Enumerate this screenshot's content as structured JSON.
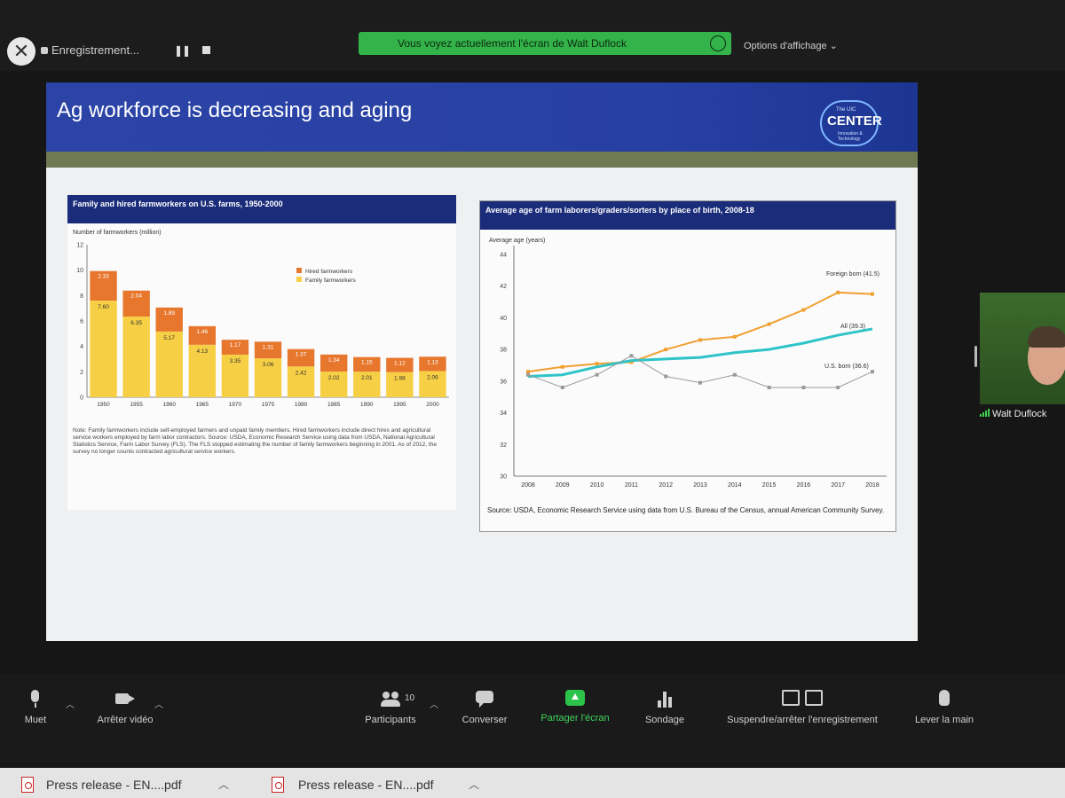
{
  "top_bar": {
    "recording_label": "Enregistrement...",
    "sharing_banner": "Vous voyez actuellement l'écran de Walt Duflock",
    "view_options": "Options d'affichage ⌄"
  },
  "slide": {
    "title": "Ag workforce is decreasing and aging",
    "logo_top": "The UIC",
    "logo_main": "CENTER",
    "logo_sub": "Innovation & Technology"
  },
  "chart_data": [
    {
      "type": "bar",
      "title": "Family and hired farmworkers on U.S. farms, 1950-2000",
      "ylabel": "Number of farmworkers (million)",
      "categories": [
        "1950",
        "1955",
        "1960",
        "1965",
        "1970",
        "1975",
        "1980",
        "1985",
        "1990",
        "1995",
        "2000"
      ],
      "stacked": true,
      "ylim": [
        0,
        12
      ],
      "yticks": [
        "0",
        "2",
        "4",
        "6",
        "8",
        "10",
        "12"
      ],
      "series": [
        {
          "name": "Hired farmworkers",
          "color": "#e8772e",
          "values": [
            2.33,
            2.04,
            1.89,
            1.46,
            1.17,
            1.31,
            1.37,
            1.34,
            1.15,
            1.12,
            1.13
          ],
          "labels": [
            "2.33",
            "2.04",
            "1.89",
            "1.46",
            "1.17",
            "1.31",
            "1.37",
            "1.34",
            "1.15",
            "1.12",
            "1.13"
          ]
        },
        {
          "name": "Family farmworkers",
          "color": "#f6cf45",
          "values": [
            7.6,
            6.35,
            5.17,
            4.13,
            3.35,
            3.06,
            2.42,
            2.02,
            2.01,
            1.98,
            2.06
          ],
          "labels": [
            "7.60",
            "6.35",
            "5.17",
            "4.13",
            "3.35",
            "3.06",
            "2.42",
            "2.02",
            "2.01",
            "1.98",
            "2.06"
          ]
        }
      ],
      "note": "Note: Family farmworkers include self-employed farmers and unpaid family members. Hired farmworkers include direct hires and agricultural service workers employed by farm labor contractors. Source: USDA, Economic Research Service using data from USDA, National Agricultural Statistics Service, Farm Labor Survey (FLS). The FLS stopped estimating the number of family farmworkers beginning in 2001. As of 2012, the survey no longer counts contracted agricultural service workers."
    },
    {
      "type": "line",
      "title": "Average age of farm laborers/graders/sorters by place of birth, 2008-18",
      "ylabel": "Average age (years)",
      "x": [
        "2008",
        "2009",
        "2010",
        "2011",
        "2012",
        "2013",
        "2014",
        "2015",
        "2016",
        "2017",
        "2018"
      ],
      "ylim": [
        30,
        44
      ],
      "yticks": [
        "30",
        "32",
        "34",
        "36",
        "38",
        "40",
        "42",
        "44"
      ],
      "series": [
        {
          "name": "Foreign born (41.5)",
          "color": "#f0a030",
          "values": [
            36.6,
            36.9,
            37.1,
            37.2,
            38.0,
            38.6,
            38.8,
            39.6,
            40.5,
            41.6,
            41.5
          ]
        },
        {
          "name": "All (39.3)",
          "color": "#2ec4c8",
          "values": [
            36.3,
            36.4,
            36.9,
            37.3,
            37.4,
            37.5,
            37.8,
            38.0,
            38.4,
            38.9,
            39.3
          ]
        },
        {
          "name": "U.S. born (36.6)",
          "color": "#9a9a9a",
          "values": [
            36.4,
            35.6,
            36.4,
            37.6,
            36.3,
            35.9,
            36.4,
            35.6,
            35.6,
            35.6,
            36.6
          ]
        }
      ],
      "source": "Source: USDA, Economic Research Service using data from U.S. Bureau of the Census, annual American Community Survey."
    }
  ],
  "participant": {
    "name": "Walt Duflock"
  },
  "toolbar": {
    "mute": "Muet",
    "stop_video": "Arrêter vidéo",
    "participants": "Participants",
    "participants_count": "10",
    "chat": "Converser",
    "share_screen": "Partager l'écran",
    "poll": "Sondage",
    "pause_recording": "Suspendre/arrêter l'enregistrement",
    "raise_hand": "Lever la main"
  },
  "taskbar": {
    "items": [
      {
        "label": "Press release - EN....pdf"
      },
      {
        "label": "Press release - EN....pdf"
      }
    ]
  },
  "colors": {
    "share_green": "#34b34a",
    "slide_header_blue": "#2a42a6",
    "chart_title_navy": "#1a2c7a"
  }
}
